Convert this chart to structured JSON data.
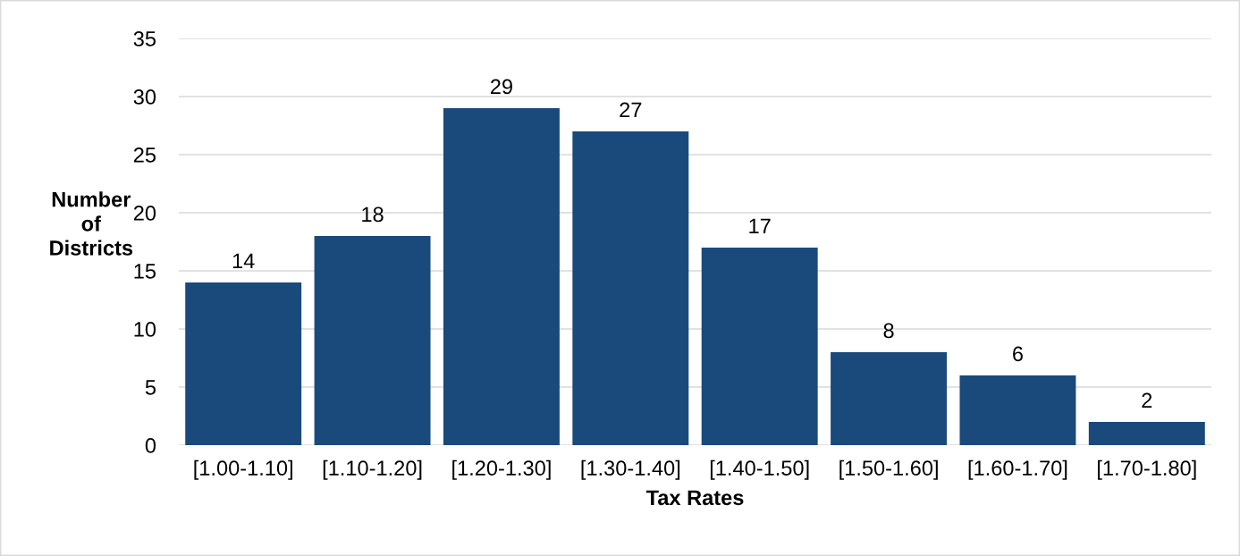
{
  "chart_data": {
    "type": "bar",
    "xlabel": "Tax Rates",
    "ylabel": "Number\nof\nDistricts",
    "categories": [
      "[1.00-1.10]",
      "[1.10-1.20]",
      "[1.20-1.30]",
      "[1.30-1.40]",
      "[1.40-1.50]",
      "[1.50-1.60]",
      "[1.60-1.70]",
      "[1.70-1.80]"
    ],
    "values": [
      14,
      18,
      29,
      27,
      17,
      8,
      6,
      2
    ],
    "color": "#1a4a7c",
    "ylim": [
      0,
      35
    ],
    "yticks": [
      0,
      5,
      10,
      15,
      20,
      25,
      30,
      35
    ],
    "grid": "y",
    "data_labels": true
  }
}
